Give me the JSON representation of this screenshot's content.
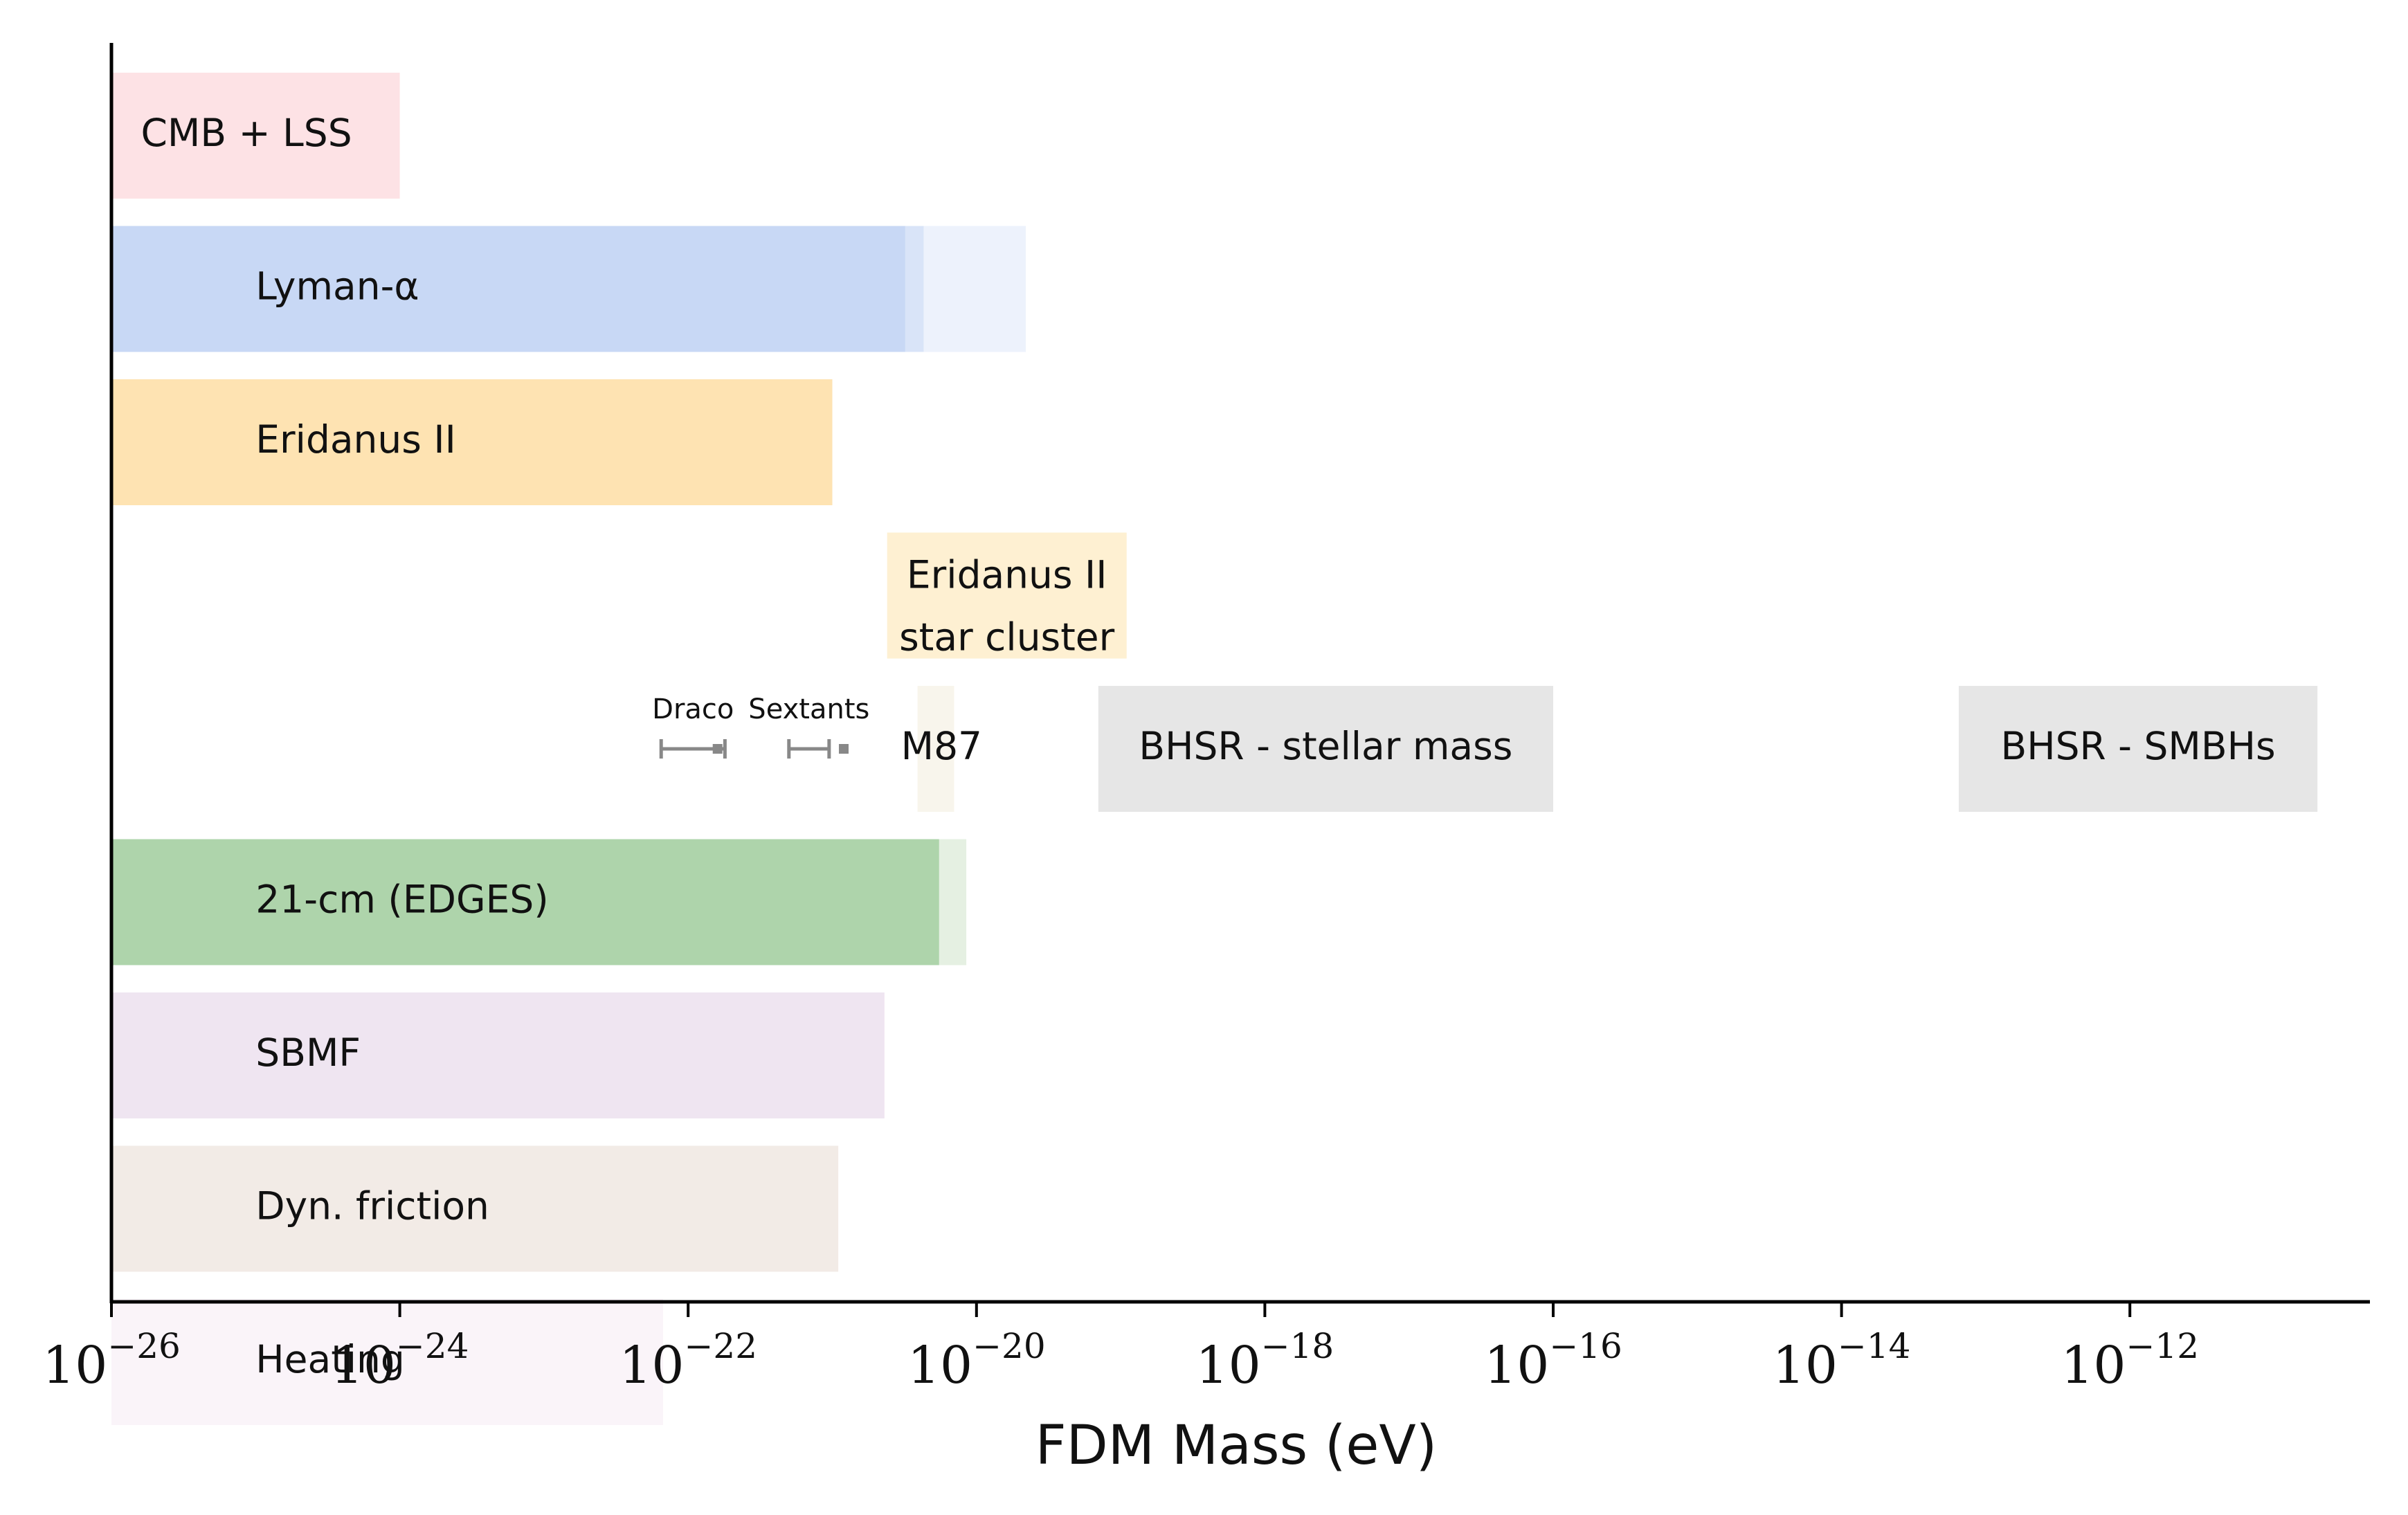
{
  "chart_data": {
    "type": "bar",
    "orientation": "horizontal",
    "xscale": "log",
    "xlabel": "FDM Mass (eV)",
    "xlim": [
      1e-26,
      3e-11
    ],
    "grid": false,
    "legend": "none",
    "ticks": [
      {
        "value": 1e-26,
        "base": "10",
        "exp": "−26"
      },
      {
        "value": 1e-24,
        "base": "10",
        "exp": "−24"
      },
      {
        "value": 1e-22,
        "base": "10",
        "exp": "−22"
      },
      {
        "value": 1e-20,
        "base": "10",
        "exp": "−20"
      },
      {
        "value": 1e-18,
        "base": "10",
        "exp": "−18"
      },
      {
        "value": 1e-16,
        "base": "10",
        "exp": "−16"
      },
      {
        "value": 1e-14,
        "base": "10",
        "exp": "−14"
      },
      {
        "value": 1e-12,
        "base": "10",
        "exp": "−12"
      }
    ],
    "rows": [
      {
        "label": "CMB + LSS",
        "label_at": 1.6e-26,
        "bars": [
          {
            "from": 1e-26,
            "to": 1e-24,
            "color": "#fde2e5"
          }
        ]
      },
      {
        "label": "Lyman-α",
        "label_at": 1e-25,
        "bars": [
          {
            "from": 1e-26,
            "to": 2.2e-20,
            "color": "#edf2fc"
          },
          {
            "from": 1e-26,
            "to": 4.3e-21,
            "color": "#d9e4f8"
          },
          {
            "from": 1e-26,
            "to": 3.2e-21,
            "color": "#c8d8f5"
          }
        ]
      },
      {
        "label": "Eridanus II",
        "label_at": 1e-25,
        "bars": [
          {
            "from": 1e-26,
            "to": 1e-21,
            "color": "#fee3b2"
          }
        ]
      },
      {
        "label": "",
        "bars": [
          {
            "from": 2.4e-21,
            "to": 1.1e-19,
            "color": "#fef0d2",
            "label_lines": [
              "Eridanus II",
              "star cluster"
            ]
          }
        ]
      },
      {
        "label": "",
        "bars": [
          {
            "from": 3.9e-21,
            "to": 7e-21,
            "color": "#f8f5ec",
            "label": "M87"
          },
          {
            "from": 7e-20,
            "to": 1e-16,
            "color": "#e6e6e6",
            "label": "BHSR - stellar mass"
          },
          {
            "from": 6.5e-14,
            "to": 2e-11,
            "color": "#e6e6e6",
            "label": "BHSR - SMBHs"
          }
        ],
        "errorbars": [
          {
            "label": "Draco",
            "value": 1.6e-22,
            "low": 6.5e-23,
            "high": 1.8e-22,
            "color": "#888888"
          },
          {
            "label": "Sextants",
            "value": 1.2e-21,
            "low": 5e-22,
            "high": 9.5e-22,
            "color": "#888888"
          }
        ]
      },
      {
        "label": "21-cm (EDGES)",
        "label_at": 1e-25,
        "bars": [
          {
            "from": 1e-26,
            "to": 8.5e-21,
            "color": "#e5f0e2"
          },
          {
            "from": 1e-26,
            "to": 5.5e-21,
            "color": "#aed4ab"
          }
        ]
      },
      {
        "label": "SBMF",
        "label_at": 1e-25,
        "bars": [
          {
            "from": 1e-26,
            "to": 2.3e-21,
            "color": "#efe5f1"
          }
        ]
      },
      {
        "label": "Dyn. friction",
        "label_at": 1e-25,
        "bars": [
          {
            "from": 1e-26,
            "to": 1.1e-21,
            "color": "#f2ebe6"
          }
        ]
      },
      {
        "label": "Heating",
        "label_at": 1e-25,
        "bars": [
          {
            "from": 1e-26,
            "to": 6.7e-23,
            "color": "#faf4f9"
          }
        ]
      }
    ]
  }
}
